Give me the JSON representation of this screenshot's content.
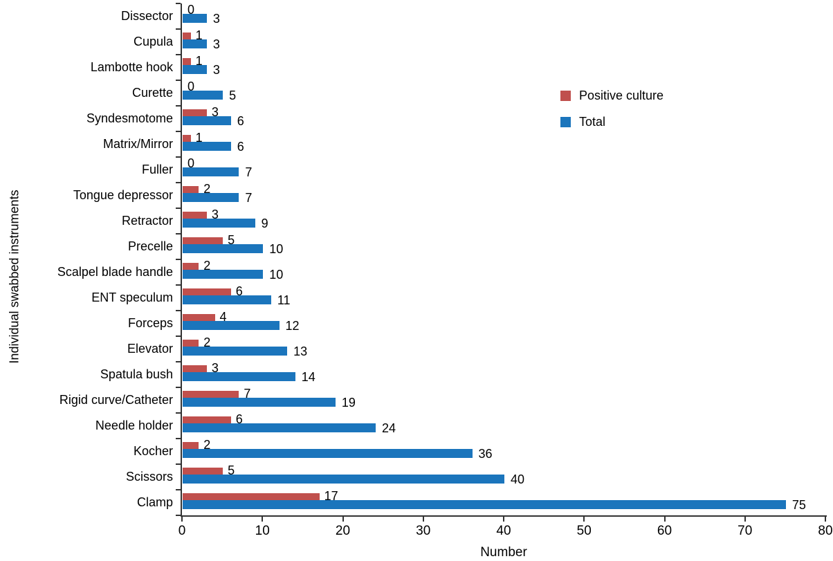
{
  "figure": {
    "background": "#ffffff"
  },
  "chart_data": {
    "type": "bar",
    "orientation": "horizontal",
    "title": "",
    "xlabel": "Number",
    "ylabel": "Individual swabbed instruments",
    "xlim": [
      0,
      80
    ],
    "xticks": [
      0,
      10,
      20,
      30,
      40,
      50,
      60,
      70,
      80
    ],
    "grid": false,
    "value_labels": true,
    "legend_position": "upper-right",
    "categories": [
      "Dissector",
      "Cupula",
      "Lambotte hook",
      "Curette",
      "Syndesmotome",
      "Matrix/Mirror",
      "Fuller",
      "Tongue depressor",
      "Retractor",
      "Precelle",
      "Scalpel blade handle",
      "ENT speculum",
      "Forceps",
      "Elevator",
      "Spatula bush",
      "Rigid curve/Catheter",
      "Needle holder",
      "Kocher",
      "Scissors",
      "Clamp"
    ],
    "series": [
      {
        "name": "Positive culture",
        "color": "#c0504d",
        "values": [
          0,
          1,
          1,
          0,
          3,
          1,
          0,
          2,
          3,
          5,
          2,
          6,
          4,
          2,
          3,
          7,
          6,
          2,
          5,
          17
        ]
      },
      {
        "name": "Total",
        "color": "#1b75bc",
        "values": [
          3,
          3,
          3,
          5,
          6,
          6,
          7,
          7,
          9,
          10,
          10,
          11,
          12,
          13,
          14,
          19,
          24,
          36,
          40,
          75
        ]
      }
    ],
    "axis_color": "#333333",
    "text_color": "#000000"
  }
}
